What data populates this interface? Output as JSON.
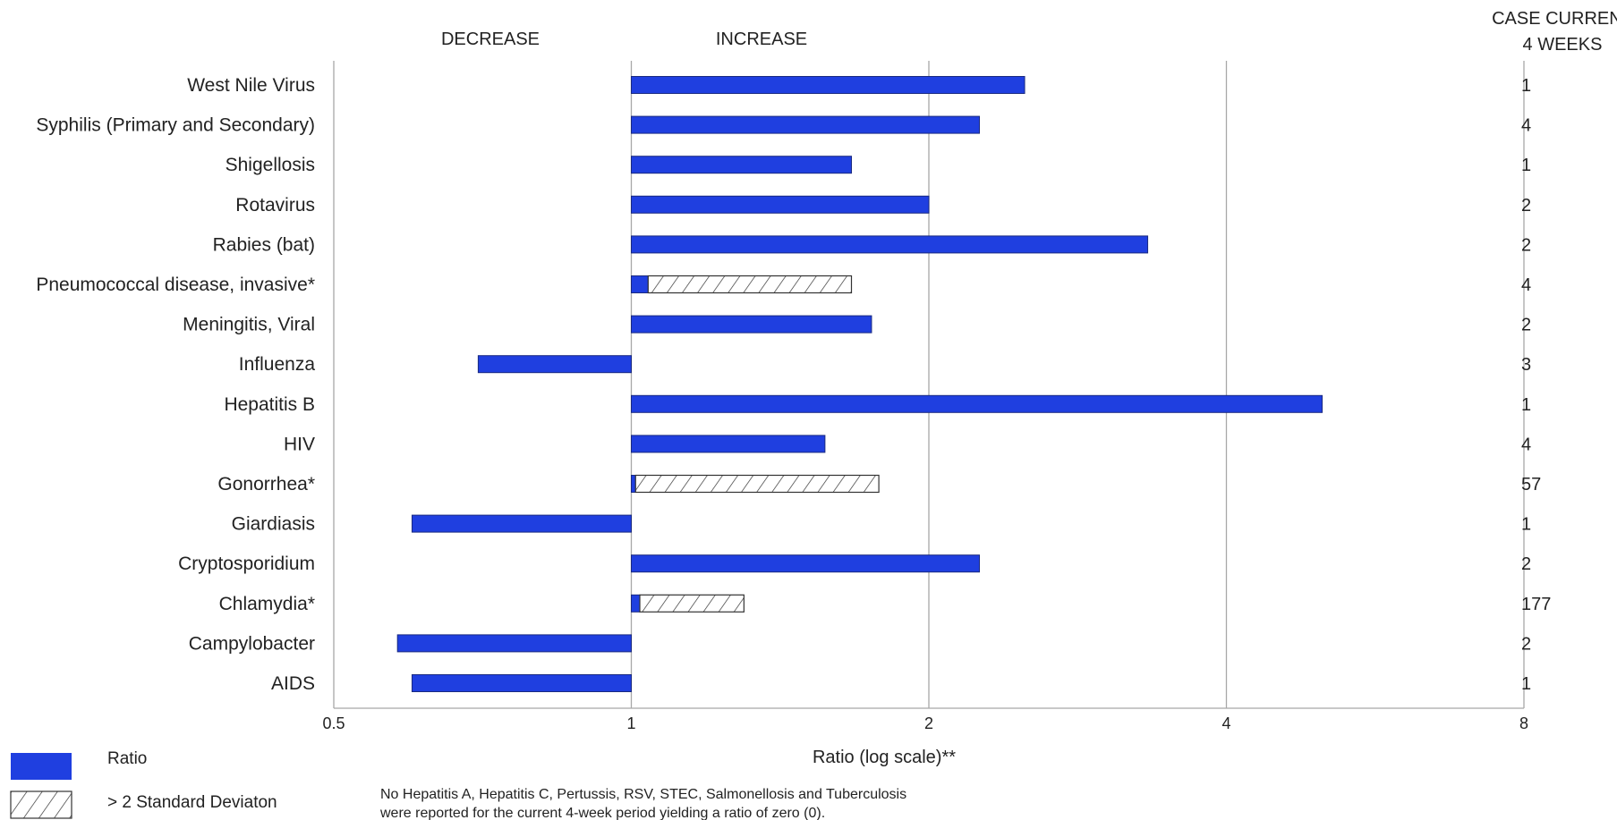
{
  "chart_data": {
    "type": "bar",
    "orientation": "horizontal",
    "x_scale": "log2",
    "xlim": [
      0.5,
      8
    ],
    "xticks": [
      "0.5",
      "1",
      "2",
      "4",
      "8"
    ],
    "xlabel": "Ratio (log scale)**",
    "grid": "vertical",
    "region_labels": {
      "decrease": "DECREASE",
      "increase": "INCREASE"
    },
    "count_header": [
      "CASE CURRENT",
      "4 WEEKS"
    ],
    "categories": [
      "West Nile Virus",
      "Syphilis (Primary and Secondary)",
      "Shigellosis",
      "Rotavirus",
      "Rabies (bat)",
      "Pneumococcal disease, invasive*",
      "Meningitis, Viral",
      "Influenza",
      "Hepatitis B",
      "HIV",
      "Gonorrhea*",
      "Giardiasis",
      "Cryptosporidium",
      "Chlamydia*",
      "Campylobacter",
      "AIDS"
    ],
    "series": [
      {
        "name": "Ratio",
        "color": "#1f3fe0",
        "values": [
          2.5,
          2.25,
          1.67,
          2.0,
          3.33,
          1.04,
          1.75,
          0.7,
          5.0,
          1.57,
          1.01,
          0.6,
          2.25,
          1.02,
          0.58,
          0.6
        ]
      },
      {
        "name": "> 2 Standard Deviaton",
        "pattern": "hatch",
        "values": [
          null,
          null,
          null,
          null,
          null,
          1.67,
          null,
          null,
          null,
          null,
          1.78,
          null,
          null,
          1.3,
          null,
          null
        ]
      }
    ],
    "case_counts": [
      "1",
      "4",
      "1",
      "2",
      "2",
      "4",
      "2",
      "3",
      "1",
      "4",
      "57",
      "1",
      "2",
      "177",
      "2",
      "1"
    ],
    "legend": {
      "placement": "bottom-left",
      "items": [
        {
          "label": "Ratio",
          "style": "solid",
          "color": "#1f3fe0"
        },
        {
          "label": "> 2 Standard Deviaton",
          "style": "hatch"
        }
      ]
    },
    "footnote": [
      "No Hepatitis A, Hepatitis C, Pertussis,  RSV, STEC, Salmonellosis  and Tuberculosis",
      "were reported for the current 4-week period yielding a ratio of zero (0)."
    ]
  }
}
